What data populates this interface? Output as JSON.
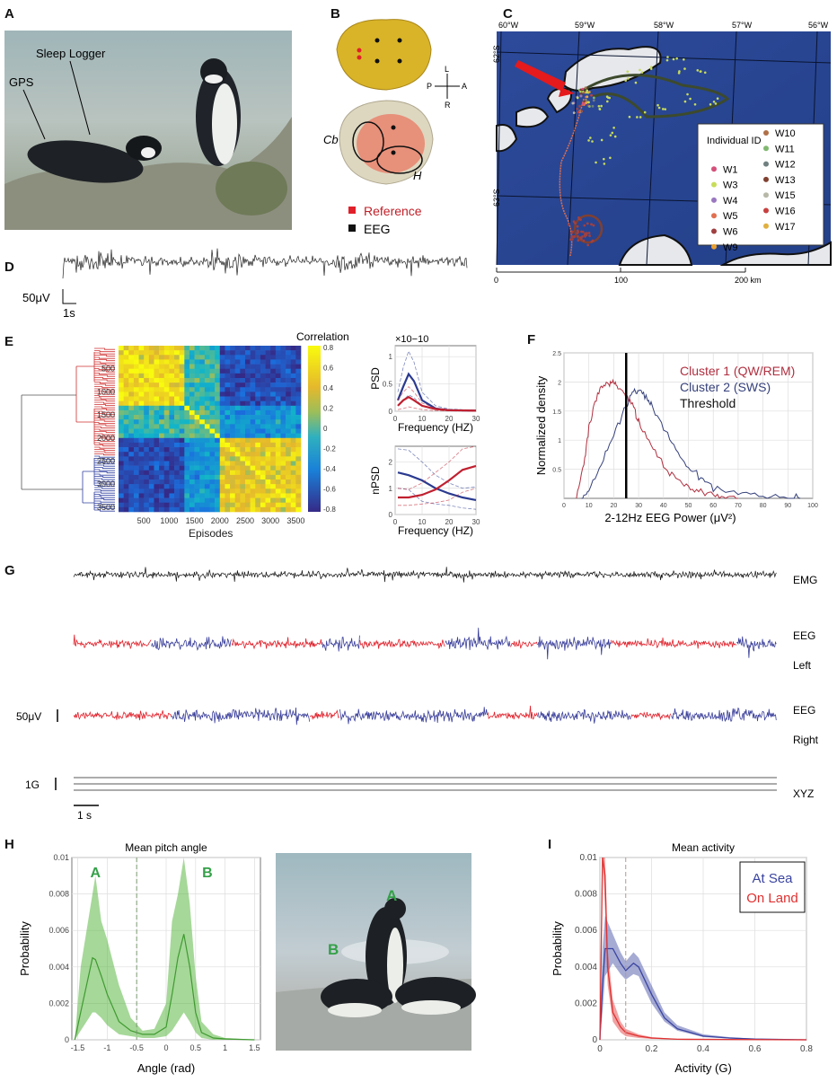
{
  "panel_labels": {
    "a": "A",
    "b": "B",
    "c": "C",
    "d": "D",
    "e": "E",
    "f": "F",
    "g": "G",
    "h": "H",
    "i": "I"
  },
  "panel_a": {
    "label_logger": "Sleep Logger",
    "label_gps": "GPS"
  },
  "panel_b": {
    "compass": {
      "top": "L",
      "bottom": "R",
      "left": "P",
      "right": "A"
    },
    "region_cb": "Cb",
    "region_h": "H",
    "legend": [
      {
        "label": "Reference",
        "color": "#e0202a"
      },
      {
        "label": "EEG",
        "color": "#111111"
      }
    ]
  },
  "panel_c": {
    "lon_ticks": [
      "60°W",
      "59°W",
      "58°W",
      "57°W",
      "56°W"
    ],
    "lat_ticks": [
      "62°S",
      "63°S"
    ],
    "scale": {
      "ticks": [
        "0",
        "100",
        "200 km"
      ]
    },
    "legend_title": "Individual ID",
    "legend": [
      {
        "id": "W1",
        "color": "#d4507a"
      },
      {
        "id": "W3",
        "color": "#c8dc5a"
      },
      {
        "id": "W4",
        "color": "#9a78c0"
      },
      {
        "id": "W5",
        "color": "#e07050"
      },
      {
        "id": "W6",
        "color": "#a04040"
      },
      {
        "id": "W9",
        "color": "#e8a030"
      },
      {
        "id": "W10",
        "color": "#b07048"
      },
      {
        "id": "W11",
        "color": "#80b870"
      },
      {
        "id": "W12",
        "color": "#708080"
      },
      {
        "id": "W13",
        "color": "#804030"
      },
      {
        "id": "W15",
        "color": "#b8b8a8"
      },
      {
        "id": "W16",
        "color": "#c84040"
      },
      {
        "id": "W17",
        "color": "#e0b040"
      }
    ]
  },
  "panel_d": {
    "scale_v": "50μV",
    "scale_t": "1s"
  },
  "chart_data": [
    {
      "panel": "E-heatmap",
      "type": "heatmap",
      "xlabel": "Episodes",
      "colorbar_label": "Correlation",
      "xticks": [
        "500",
        "1000",
        "1500",
        "2000",
        "2500",
        "3000",
        "3500"
      ],
      "yticks": [
        "500",
        "1000",
        "1500",
        "2000",
        "2500",
        "3000",
        "3500"
      ],
      "xlim": [
        0,
        3600
      ],
      "ylim": [
        0,
        3600
      ],
      "colorbar_ticks": [
        "0.8",
        "0.6",
        "0.4",
        "0.2",
        "0",
        "-0.2",
        "-0.4",
        "-0.6",
        "-0.8"
      ],
      "clim": [
        -0.8,
        0.8
      ],
      "clusters": [
        {
          "range": [
            0,
            2050
          ],
          "color": "#d03030"
        },
        {
          "range": [
            2050,
            3600
          ],
          "color": "#3040a0"
        }
      ],
      "blocks": [
        {
          "rows": [
            0,
            1300
          ],
          "cols": [
            0,
            1300
          ],
          "r": 0.65
        },
        {
          "rows": [
            1300,
            2050
          ],
          "cols": [
            1300,
            2050
          ],
          "r": 0.15
        },
        {
          "rows": [
            0,
            1300
          ],
          "cols": [
            1300,
            2050
          ],
          "r": 0.05
        },
        {
          "rows": [
            2050,
            3600
          ],
          "cols": [
            2050,
            3600
          ],
          "r": 0.55
        },
        {
          "rows": [
            0,
            1300
          ],
          "cols": [
            2050,
            3600
          ],
          "r": -0.6
        },
        {
          "rows": [
            1300,
            2050
          ],
          "cols": [
            2050,
            3600
          ],
          "r": -0.2
        }
      ]
    },
    {
      "panel": "E-PSD",
      "type": "line",
      "ylabel": "PSD",
      "xlabel": "Frequency (HZ)",
      "multiplier": "×10−10",
      "xlim": [
        0,
        30
      ],
      "ylim": [
        0,
        1.2
      ],
      "xticks": [
        "0",
        "10",
        "20",
        "30"
      ],
      "yticks": [
        "0",
        "0.5",
        "1"
      ],
      "grid": true,
      "x": [
        1,
        3,
        5,
        7,
        10,
        15,
        20,
        30
      ],
      "series": [
        {
          "color": "#2a3a90",
          "values": [
            0.2,
            0.45,
            0.68,
            0.55,
            0.2,
            0.05,
            0.02,
            0.01
          ],
          "upper": [
            0.35,
            0.8,
            1.1,
            0.9,
            0.35,
            0.1,
            0.04,
            0.02
          ],
          "lower": [
            0.1,
            0.2,
            0.3,
            0.25,
            0.1,
            0.03,
            0.01,
            0.005
          ]
        },
        {
          "color": "#c02030",
          "values": [
            0.1,
            0.2,
            0.26,
            0.2,
            0.1,
            0.04,
            0.02,
            0.01
          ],
          "upper": [
            0.2,
            0.35,
            0.45,
            0.35,
            0.15,
            0.06,
            0.03,
            0.02
          ],
          "lower": [
            0.03,
            0.05,
            0.08,
            0.06,
            0.03,
            0.01,
            0.005,
            0.003
          ]
        }
      ]
    },
    {
      "panel": "E-nPSD",
      "type": "line",
      "ylabel": "nPSD",
      "xlabel": "Frequency (HZ)",
      "xlim": [
        0,
        30
      ],
      "ylim": [
        0,
        2.6
      ],
      "xticks": [
        "0",
        "10",
        "20",
        "30"
      ],
      "yticks": [
        "0",
        "1",
        "2"
      ],
      "grid": true,
      "x": [
        1,
        5,
        10,
        15,
        20,
        25,
        30
      ],
      "series": [
        {
          "color": "#2a3a90",
          "values": [
            1.6,
            1.5,
            1.3,
            1.0,
            0.8,
            0.65,
            0.55
          ],
          "upper": [
            2.5,
            2.45,
            2.0,
            1.5,
            1.2,
            1.0,
            1.05
          ],
          "lower": [
            1.0,
            0.95,
            0.5,
            0.4,
            0.35,
            0.25,
            0.2
          ]
        },
        {
          "color": "#c02030",
          "values": [
            0.65,
            0.65,
            0.75,
            0.95,
            1.3,
            1.7,
            1.85
          ],
          "upper": [
            1.0,
            0.95,
            1.2,
            1.6,
            2.0,
            2.5,
            2.6
          ],
          "lower": [
            0.35,
            0.35,
            0.4,
            0.45,
            0.55,
            0.85,
            1.0
          ]
        }
      ]
    },
    {
      "panel": "F",
      "type": "line",
      "xlabel": "2-12Hz EEG Power (μV²)",
      "ylabel": "Normalized density",
      "xlim": [
        0,
        100
      ],
      "ylim": [
        0,
        2.5
      ],
      "grid": true,
      "xticks": [
        "0",
        "10",
        "20",
        "30",
        "40",
        "50",
        "60",
        "70",
        "80",
        "90",
        "100"
      ],
      "yticks": [
        "0.5",
        "1",
        "1.5",
        "2",
        "2.5"
      ],
      "threshold": 25,
      "series": [
        {
          "name": "Cluster 1 (QW/REM)",
          "color": "#b03040",
          "x": [
            5,
            8,
            10,
            12,
            15,
            18,
            20,
            22,
            25,
            28,
            30,
            35,
            40,
            45,
            50,
            55,
            60,
            65,
            70
          ],
          "values": [
            0,
            0.6,
            1.2,
            1.6,
            1.9,
            2.0,
            2.0,
            1.9,
            1.75,
            1.6,
            1.3,
            0.95,
            0.55,
            0.35,
            0.2,
            0.1,
            0.05,
            0.02,
            0
          ]
        },
        {
          "name": "Cluster 2 (SWS)",
          "color": "#35407a",
          "x": [
            7,
            10,
            15,
            20,
            25,
            28,
            30,
            33,
            35,
            40,
            45,
            50,
            55,
            60,
            70,
            80,
            90,
            95
          ],
          "values": [
            0,
            0.15,
            0.55,
            1.1,
            1.6,
            1.85,
            1.85,
            1.75,
            1.6,
            1.2,
            0.85,
            0.5,
            0.35,
            0.2,
            0.08,
            0.03,
            0.01,
            0
          ]
        }
      ],
      "threshold_label": "Threshold"
    },
    {
      "panel": "G",
      "type": "line",
      "channels": [
        "EMG",
        "EEG",
        "Left",
        "EEG",
        "Right",
        "XYZ"
      ],
      "scale_v": "50μV",
      "scale_g": "1G",
      "scale_t": "1 s",
      "duration_s": 28,
      "state_colors": {
        "cluster1": "#e0202a",
        "cluster2": "#3a3f9a"
      },
      "eeg_left_states": [
        [
          "cluster1",
          0,
          3.1
        ],
        [
          "cluster2",
          3.1,
          6.3
        ],
        [
          "cluster1",
          6.3,
          9.9
        ],
        [
          "cluster2",
          9.9,
          11.4
        ],
        [
          "cluster1",
          11.4,
          14.8
        ],
        [
          "cluster2",
          14.8,
          17.4
        ],
        [
          "cluster1",
          17.4,
          18.5
        ],
        [
          "cluster2",
          18.5,
          21.4
        ],
        [
          "cluster1",
          21.4,
          26.4
        ],
        [
          "cluster2",
          26.4,
          28
        ]
      ],
      "eeg_right_states": [
        [
          "cluster1",
          0,
          3.9
        ],
        [
          "cluster2",
          3.9,
          9.4
        ],
        [
          "cluster1",
          9.4,
          10.6
        ],
        [
          "cluster2",
          10.6,
          16.5
        ],
        [
          "cluster1",
          16.5,
          18.5
        ],
        [
          "cluster2",
          18.5,
          22.2
        ],
        [
          "cluster1",
          22.2,
          23.8
        ],
        [
          "cluster2",
          23.8,
          28
        ]
      ]
    },
    {
      "panel": "H",
      "type": "area",
      "title": "Mean pitch angle",
      "xlabel": "Angle (rad)",
      "ylabel": "Probability",
      "xlim": [
        -1.6,
        1.6
      ],
      "ylim": [
        0,
        0.01
      ],
      "grid": true,
      "xticks": [
        "-1.5",
        "-1",
        "-0.5",
        "0",
        "0.5",
        "1",
        "1.5"
      ],
      "yticks": [
        "0",
        "0.002",
        "0.004",
        "0.006",
        "0.008",
        "0.01"
      ],
      "divider": -0.5,
      "peak_labels": [
        {
          "text": "A",
          "x": -1.2
        },
        {
          "text": "B",
          "x": 0.7
        }
      ],
      "color": "#5cb845",
      "x": [
        -1.55,
        -1.45,
        -1.35,
        -1.25,
        -1.2,
        -1.1,
        -1.0,
        -0.8,
        -0.6,
        -0.4,
        -0.2,
        0,
        0.1,
        0.2,
        0.3,
        0.4,
        0.5,
        0.6,
        0.8,
        1.0,
        1.5
      ],
      "values": [
        0,
        0.0015,
        0.003,
        0.0045,
        0.0044,
        0.0035,
        0.0025,
        0.001,
        0.0005,
        0.0003,
        0.0003,
        0.0007,
        0.0025,
        0.0045,
        0.0058,
        0.004,
        0.0015,
        0.0004,
        0.0001,
        5e-05,
        0
      ],
      "upper": [
        0,
        0.004,
        0.006,
        0.008,
        0.009,
        0.0065,
        0.0055,
        0.003,
        0.0012,
        0.0005,
        0.0006,
        0.002,
        0.0065,
        0.008,
        0.01,
        0.0075,
        0.0035,
        0.001,
        0.0003,
        0.0001,
        0
      ],
      "lower": [
        0,
        0.0005,
        0.001,
        0.0015,
        0.0015,
        0.0012,
        0.0008,
        0.0003,
        0.0002,
        0.0001,
        0.0001,
        0.0002,
        0.0005,
        0.001,
        0.0015,
        0.001,
        0.0004,
        0.0001,
        0,
        0,
        0
      ]
    },
    {
      "panel": "I",
      "type": "area",
      "title": "Mean activity",
      "xlabel": "Activity (G)",
      "ylabel": "Probability",
      "xlim": [
        0,
        0.8
      ],
      "ylim": [
        0,
        0.01
      ],
      "grid": true,
      "xticks": [
        "0",
        "0.2",
        "0.4",
        "0.6",
        "0.8"
      ],
      "yticks": [
        "0",
        "0.002",
        "0.004",
        "0.006",
        "0.008",
        "0.01"
      ],
      "divider": 0.1,
      "legend_position": "top-right",
      "series": [
        {
          "name": "At Sea",
          "color": "#3a44a0",
          "x": [
            0,
            0.01,
            0.02,
            0.05,
            0.08,
            0.1,
            0.13,
            0.15,
            0.2,
            0.25,
            0.3,
            0.4,
            0.5,
            0.6,
            0.8
          ],
          "values": [
            0,
            0.003,
            0.005,
            0.005,
            0.0042,
            0.0038,
            0.0042,
            0.004,
            0.0025,
            0.0012,
            0.0006,
            0.0002,
            0.0001,
            4e-05,
            0
          ],
          "upper": [
            0,
            0.005,
            0.0068,
            0.0058,
            0.0048,
            0.0043,
            0.0048,
            0.0045,
            0.003,
            0.0015,
            0.0008,
            0.0003,
            0.00015,
            6e-05,
            0
          ],
          "lower": [
            0,
            0.0015,
            0.0035,
            0.0042,
            0.0036,
            0.0033,
            0.0036,
            0.0035,
            0.002,
            0.001,
            0.0005,
            0.00015,
            7e-05,
            2e-05,
            0
          ]
        },
        {
          "name": "On Land",
          "color": "#e03030",
          "x": [
            0,
            0.01,
            0.02,
            0.03,
            0.05,
            0.08,
            0.1,
            0.15,
            0.2,
            0.3,
            0.8
          ],
          "values": [
            0,
            0.012,
            0.009,
            0.004,
            0.0015,
            0.0007,
            0.0004,
            0.0002,
            0.0001,
            3e-05,
            0
          ],
          "upper": [
            0,
            0.012,
            0.011,
            0.005,
            0.0022,
            0.001,
            0.0006,
            0.0003,
            0.00015,
            5e-05,
            0
          ],
          "lower": [
            0,
            0.01,
            0.007,
            0.003,
            0.001,
            0.0004,
            0.0002,
            0.0001,
            5e-05,
            1e-05,
            0
          ]
        }
      ]
    }
  ],
  "panel_h_photo": {
    "label_a": "A",
    "label_b": "B"
  }
}
